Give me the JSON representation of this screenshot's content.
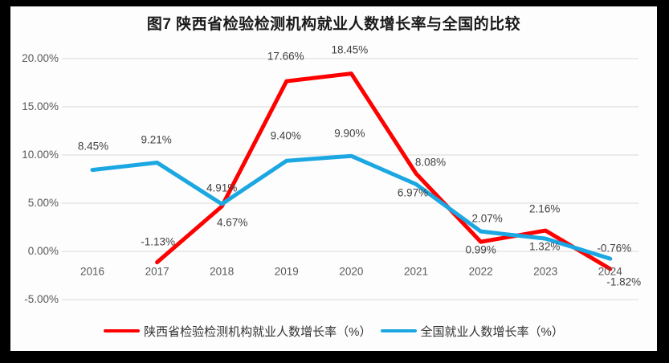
{
  "frame": {
    "background": "#000000",
    "paper": "#fdfdfd"
  },
  "chart_data": {
    "type": "line",
    "title": "图7 陕西省检验检测机构就业人数增长率与全国的比较",
    "categories": [
      "2016",
      "2017",
      "2018",
      "2019",
      "2020",
      "2021",
      "2022",
      "2023",
      "2024"
    ],
    "grid": "horizontal",
    "gridline_color": "#d9d9d9",
    "legend_position": "bottom",
    "y_axis": {
      "min": -5,
      "max": 20,
      "ticks": [
        {
          "label": "20.00%",
          "value": 20
        },
        {
          "label": "15.00%",
          "value": 15
        },
        {
          "label": "10.00%",
          "value": 10
        },
        {
          "label": "5.00%",
          "value": 5
        },
        {
          "label": "0.00%",
          "value": 0
        },
        {
          "label": "-5.00%",
          "value": -5
        }
      ]
    },
    "series": [
      {
        "key": "shaanxi",
        "name": "陕西省检验检测机构就业人数增长率（%）",
        "color": "#fe0000",
        "values": [
          null,
          -1.13,
          4.67,
          17.66,
          18.45,
          8.08,
          0.99,
          2.16,
          -1.82
        ],
        "point_labels": [
          null,
          {
            "text": "-1.13%",
            "dx": 1,
            "dy": -26
          },
          {
            "text": "4.67%",
            "dx": 13,
            "dy": 20
          },
          {
            "text": "17.66%",
            "dx": -1,
            "dy": -31
          },
          {
            "text": "18.45%",
            "dx": -2,
            "dy": -30
          },
          {
            "text": "8.08%",
            "dx": 18,
            "dy": -14
          },
          {
            "text": "0.99%",
            "dx": 0,
            "dy": 10
          },
          {
            "text": "2.16%",
            "dx": -1,
            "dy": -27
          },
          {
            "text": "-1.82%",
            "dx": 17,
            "dy": 16
          }
        ]
      },
      {
        "key": "national",
        "name": "全国就业人数增长率（%）",
        "color": "#1ba7e1",
        "values": [
          8.45,
          9.21,
          4.91,
          9.4,
          9.9,
          6.97,
          2.07,
          1.32,
          -0.76
        ],
        "point_labels": [
          {
            "text": "8.45%",
            "dx": 1,
            "dy": -30
          },
          {
            "text": "9.21%",
            "dx": -1,
            "dy": -28
          },
          {
            "text": "4.91%",
            "dx": 0,
            "dy": -20
          },
          {
            "text": "9.40%",
            "dx": -1,
            "dy": -31
          },
          {
            "text": "9.90%",
            "dx": -2,
            "dy": -28
          },
          {
            "text": "6.97%",
            "dx": -4,
            "dy": 11
          },
          {
            "text": "2.07%",
            "dx": 8,
            "dy": -16
          },
          {
            "text": "1.32%",
            "dx": -1,
            "dy": 10
          },
          {
            "text": "-0.76%",
            "dx": 5,
            "dy": -13
          }
        ]
      }
    ]
  }
}
